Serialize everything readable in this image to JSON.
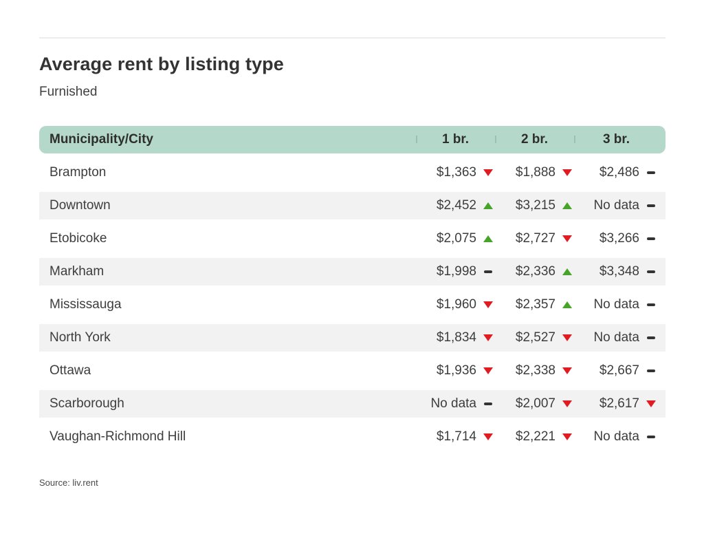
{
  "chart_data": {
    "type": "table",
    "title": "Average rent by listing type",
    "subtitle": "Furnished",
    "source": "Source: liv.rent",
    "columns": [
      "Municipality/City",
      "1 br.",
      "2 br.",
      "3 br."
    ],
    "trend_legend": {
      "down": "rent decreased (red down triangle)",
      "up": "rent increased (green up triangle)",
      "flat": "no change / not applicable (dark dash)"
    },
    "rows": [
      {
        "city": "Brampton",
        "cells": [
          {
            "text": "$1,363",
            "value": 1363,
            "trend": "down"
          },
          {
            "text": "$1,888",
            "value": 1888,
            "trend": "down"
          },
          {
            "text": "$2,486",
            "value": 2486,
            "trend": "flat"
          }
        ]
      },
      {
        "city": "Downtown",
        "cells": [
          {
            "text": "$2,452",
            "value": 2452,
            "trend": "up"
          },
          {
            "text": "$3,215",
            "value": 3215,
            "trend": "up"
          },
          {
            "text": "No data",
            "value": null,
            "trend": "flat"
          }
        ]
      },
      {
        "city": "Etobicoke",
        "cells": [
          {
            "text": "$2,075",
            "value": 2075,
            "trend": "up"
          },
          {
            "text": "$2,727",
            "value": 2727,
            "trend": "down"
          },
          {
            "text": "$3,266",
            "value": 3266,
            "trend": "flat"
          }
        ]
      },
      {
        "city": "Markham",
        "cells": [
          {
            "text": "$1,998",
            "value": 1998,
            "trend": "flat"
          },
          {
            "text": "$2,336",
            "value": 2336,
            "trend": "up"
          },
          {
            "text": "$3,348",
            "value": 3348,
            "trend": "flat"
          }
        ]
      },
      {
        "city": "Mississauga",
        "cells": [
          {
            "text": "$1,960",
            "value": 1960,
            "trend": "down"
          },
          {
            "text": "$2,357",
            "value": 2357,
            "trend": "up"
          },
          {
            "text": "No data",
            "value": null,
            "trend": "flat"
          }
        ]
      },
      {
        "city": "North York",
        "cells": [
          {
            "text": "$1,834",
            "value": 1834,
            "trend": "down"
          },
          {
            "text": "$2,527",
            "value": 2527,
            "trend": "down"
          },
          {
            "text": "No data",
            "value": null,
            "trend": "flat"
          }
        ]
      },
      {
        "city": "Ottawa",
        "cells": [
          {
            "text": "$1,936",
            "value": 1936,
            "trend": "down"
          },
          {
            "text": "$2,338",
            "value": 2338,
            "trend": "down"
          },
          {
            "text": "$2,667",
            "value": 2667,
            "trend": "flat"
          }
        ]
      },
      {
        "city": "Scarborough",
        "cells": [
          {
            "text": "No data",
            "value": null,
            "trend": "flat"
          },
          {
            "text": "$2,007",
            "value": 2007,
            "trend": "down"
          },
          {
            "text": "$2,617",
            "value": 2617,
            "trend": "down"
          }
        ]
      },
      {
        "city": "Vaughan-Richmond Hill",
        "cells": [
          {
            "text": "$1,714",
            "value": 1714,
            "trend": "down"
          },
          {
            "text": "$2,221",
            "value": 2221,
            "trend": "down"
          },
          {
            "text": "No data",
            "value": null,
            "trend": "flat"
          }
        ]
      }
    ]
  },
  "colors": {
    "header_background": "#b4d9ca",
    "header_divider": "#9dc0b2",
    "alt_row_background": "#f2f2f2",
    "trend_down_red": "#e11b22",
    "trend_up_green": "#47a32a",
    "trend_flat_dash": "#333333",
    "title_text": "#333333",
    "body_text": "#3d3d3d",
    "top_rule": "#ececec"
  }
}
